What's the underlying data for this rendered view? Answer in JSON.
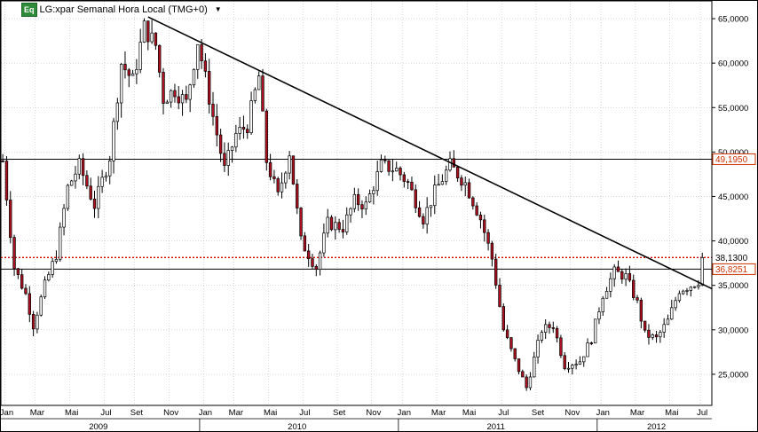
{
  "header": {
    "badge": "Eq",
    "title": "LG:xpar Semanal Hora Local (TMG+0)"
  },
  "colors": {
    "up": "#ffffff",
    "down": "#b01020",
    "wick": "#000000",
    "trendline": "#000000",
    "hline": "#000000",
    "dotted_line": "#cc0000",
    "tag_border": "#cc3300",
    "grid": "#c0c0c0"
  },
  "chart_data": {
    "type": "candlestick",
    "title": "LG:xpar Semanal Hora Local (TMG+0)",
    "ylim": [
      21500,
      67000
    ],
    "y_ticks": [
      "25,0000",
      "30,0000",
      "35,0000",
      "40,0000",
      "45,0000",
      "50,0000",
      "55,0000",
      "60,0000",
      "65,0000"
    ],
    "y_tick_values": [
      25000,
      30000,
      35000,
      40000,
      45000,
      50000,
      55000,
      60000,
      65000
    ],
    "grid": true,
    "month_labels": [
      "Jan",
      "Mar",
      "Mai",
      "Jul",
      "Set",
      "Nov",
      "Jan",
      "Mar",
      "Mai",
      "Jul",
      "Set",
      "Nov",
      "Jan",
      "Mar",
      "Mai",
      "Jul",
      "Set",
      "Nov",
      "Jan",
      "Mar",
      "Mai",
      "Jul"
    ],
    "month_week_index": [
      1,
      9,
      18,
      27,
      35,
      44,
      53,
      61,
      70,
      79,
      88,
      97,
      105,
      114,
      122,
      131,
      140,
      149,
      157,
      166,
      175,
      183
    ],
    "year_labels": [
      "2009",
      "2010",
      "2011",
      "2012"
    ],
    "year_center_week": [
      25,
      77,
      129,
      171
    ],
    "year_start_week": [
      0,
      52,
      104,
      156
    ],
    "weeks_total": 186,
    "horizontal_levels": [
      {
        "value": 49195,
        "label": "49,1950",
        "style": "solid"
      },
      {
        "value": 38130,
        "label": "38,1300",
        "style": "dotted"
      },
      {
        "value": 36825,
        "label": "36,8251",
        "style": "solid"
      }
    ],
    "trendline": {
      "from": {
        "week": 38,
        "price": 65200
      },
      "to": {
        "week": 186,
        "price": 34600
      }
    },
    "waypoints": [
      [
        0,
        49000
      ],
      [
        3,
        37000
      ],
      [
        6,
        34000
      ],
      [
        8,
        30500
      ],
      [
        11,
        35000
      ],
      [
        14,
        38500
      ],
      [
        17,
        46000
      ],
      [
        20,
        48500
      ],
      [
        24,
        44000
      ],
      [
        28,
        49500
      ],
      [
        31,
        60000
      ],
      [
        34,
        58000
      ],
      [
        37,
        64000
      ],
      [
        40,
        62000
      ],
      [
        42,
        56000
      ],
      [
        45,
        57000
      ],
      [
        48,
        55500
      ],
      [
        51,
        62500
      ],
      [
        55,
        54000
      ],
      [
        58,
        48000
      ],
      [
        61,
        52000
      ],
      [
        64,
        53000
      ],
      [
        67,
        58500
      ],
      [
        69,
        49000
      ],
      [
        72,
        45000
      ],
      [
        75,
        50000
      ],
      [
        78,
        40000
      ],
      [
        82,
        37000
      ],
      [
        85,
        42000
      ],
      [
        89,
        41500
      ],
      [
        92,
        44500
      ],
      [
        95,
        44000
      ],
      [
        99,
        48500
      ],
      [
        103,
        48000
      ],
      [
        106,
        46500
      ],
      [
        110,
        42500
      ],
      [
        113,
        45500
      ],
      [
        117,
        48500
      ],
      [
        121,
        46500
      ],
      [
        125,
        42500
      ],
      [
        128,
        38000
      ],
      [
        131,
        30000
      ],
      [
        134,
        26500
      ],
      [
        137,
        23500
      ],
      [
        141,
        30000
      ],
      [
        144,
        30500
      ],
      [
        147,
        26000
      ],
      [
        151,
        26500
      ],
      [
        154,
        29000
      ],
      [
        157,
        34000
      ],
      [
        160,
        36500
      ],
      [
        163,
        36000
      ],
      [
        166,
        33000
      ],
      [
        168,
        29500
      ],
      [
        171,
        29000
      ],
      [
        174,
        31000
      ],
      [
        177,
        34500
      ],
      [
        180,
        35000
      ],
      [
        182,
        35500
      ],
      [
        183,
        38130
      ]
    ]
  }
}
